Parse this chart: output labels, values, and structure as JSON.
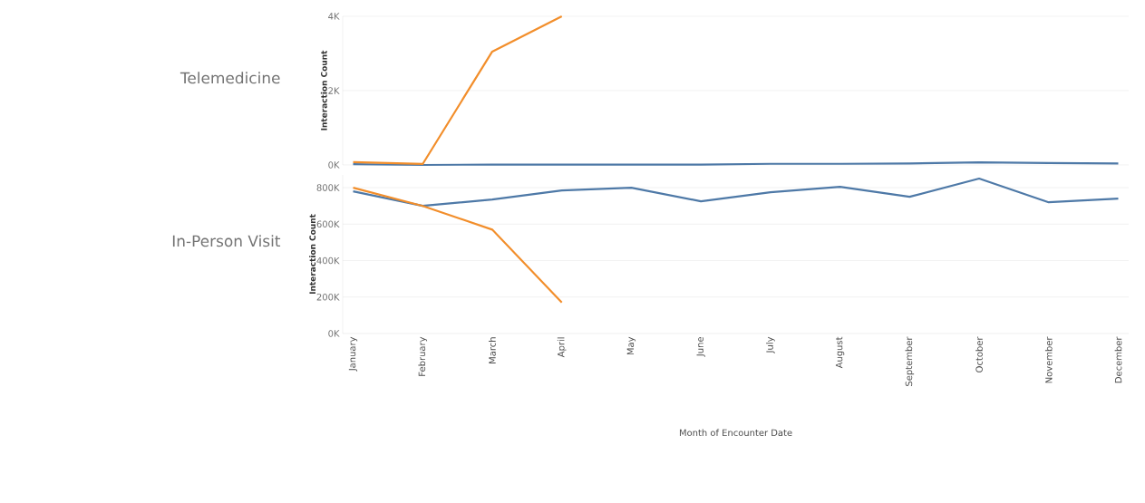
{
  "chart_data": [
    {
      "type": "line",
      "title": "Telemedicine",
      "ylabel": "Interaction Count",
      "categories": [
        null,
        null,
        null,
        null,
        null,
        null,
        null,
        null,
        null,
        null,
        null,
        null
      ],
      "series": [
        {
          "color": "#4e79a7",
          "values": [
            20,
            0,
            10,
            10,
            10,
            10,
            30,
            30,
            40,
            70,
            50,
            40
          ]
        },
        {
          "color": "#f28e2b",
          "values": [
            75,
            25,
            3050,
            4000,
            null,
            null,
            null,
            null,
            null,
            null,
            null,
            null
          ]
        }
      ],
      "ylim": [
        0,
        4000
      ],
      "yticks": [
        {
          "value": 0,
          "label": "0K"
        },
        {
          "value": 2000,
          "label": "2K"
        },
        {
          "value": 4000,
          "label": "4K"
        }
      ],
      "grid": "y",
      "tick_labels": "y"
    },
    {
      "type": "line",
      "title": "In-Person Visit",
      "ylabel": "Interaction Count",
      "xlabel": "Month of Encounter Date",
      "categories": [
        "January",
        "February",
        "March",
        "April",
        "May",
        "June",
        "July",
        "August",
        "September",
        "October",
        "November",
        "December"
      ],
      "series": [
        {
          "color": "#4e79a7",
          "values": [
            780000,
            700000,
            735000,
            785000,
            800000,
            725000,
            775000,
            805000,
            750000,
            850000,
            720000,
            740000
          ]
        },
        {
          "color": "#f28e2b",
          "values": [
            800000,
            700000,
            570000,
            170000,
            null,
            null,
            null,
            null,
            null,
            null,
            null,
            null
          ]
        }
      ],
      "ylim": [
        0,
        870000
      ],
      "yticks": [
        {
          "value": 0,
          "label": "0K"
        },
        {
          "value": 200000,
          "label": "200K"
        },
        {
          "value": 400000,
          "label": "400K"
        },
        {
          "value": 600000,
          "label": "600K"
        },
        {
          "value": 800000,
          "label": "800K"
        }
      ],
      "grid": "y"
    }
  ]
}
